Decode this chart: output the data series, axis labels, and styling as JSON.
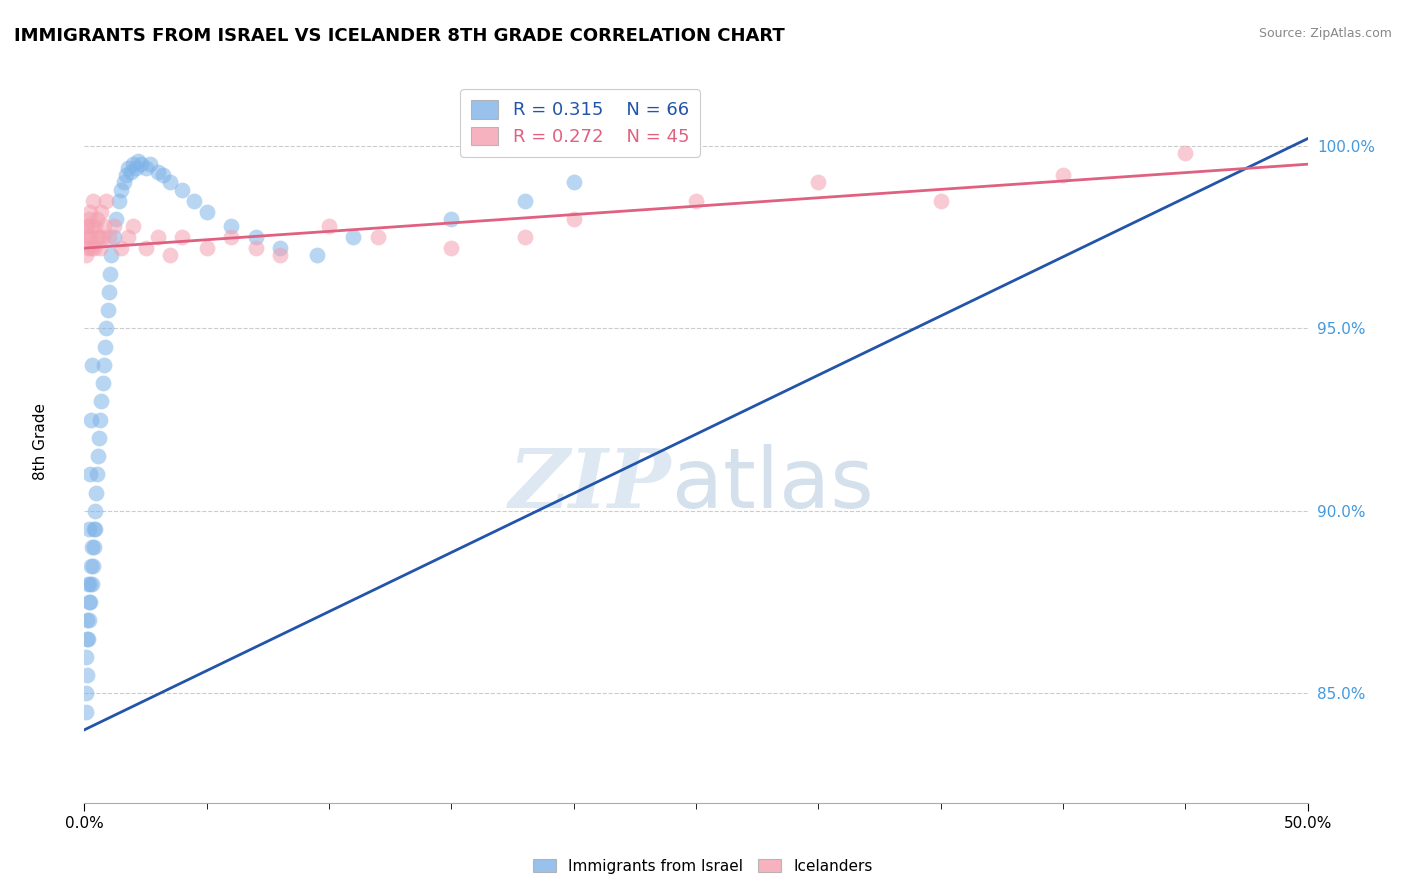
{
  "title": "IMMIGRANTS FROM ISRAEL VS ICELANDER 8TH GRADE CORRELATION CHART",
  "source": "Source: ZipAtlas.com",
  "ylabel": "8th Grade",
  "xlim": [
    0.0,
    50.0
  ],
  "ylim": [
    82.0,
    101.8
  ],
  "yticks": [
    85.0,
    90.0,
    95.0,
    100.0
  ],
  "ytick_labels": [
    "85.0%",
    "90.0%",
    "95.0%",
    "100.0%"
  ],
  "blue_R": 0.315,
  "blue_N": 66,
  "pink_R": 0.272,
  "pink_N": 45,
  "blue_color": "#7EB3E8",
  "pink_color": "#F4A0B0",
  "blue_line_color": "#2255AA",
  "pink_line_color": "#E06080",
  "legend1_label": "Immigrants from Israel",
  "legend2_label": "Icelanders",
  "blue_x": [
    0.05,
    0.08,
    0.1,
    0.12,
    0.15,
    0.18,
    0.2,
    0.22,
    0.25,
    0.28,
    0.3,
    0.33,
    0.35,
    0.38,
    0.4,
    0.42,
    0.45,
    0.48,
    0.5,
    0.55,
    0.6,
    0.65,
    0.7,
    0.75,
    0.8,
    0.85,
    0.9,
    0.95,
    1.0,
    1.05,
    1.1,
    1.2,
    1.3,
    1.4,
    1.5,
    1.6,
    1.7,
    1.8,
    1.9,
    2.0,
    2.1,
    2.2,
    2.3,
    2.5,
    2.7,
    3.0,
    3.2,
    3.5,
    4.0,
    4.5,
    5.0,
    6.0,
    7.0,
    8.0,
    9.5,
    11.0,
    15.0,
    18.0,
    20.0,
    0.07,
    0.09,
    0.13,
    0.17,
    0.23,
    0.27,
    0.32
  ],
  "blue_y": [
    84.5,
    86.0,
    85.5,
    87.0,
    86.5,
    87.5,
    87.0,
    88.0,
    87.5,
    88.5,
    88.0,
    89.0,
    88.5,
    89.5,
    89.0,
    90.0,
    89.5,
    90.5,
    91.0,
    91.5,
    92.0,
    92.5,
    93.0,
    93.5,
    94.0,
    94.5,
    95.0,
    95.5,
    96.0,
    96.5,
    97.0,
    97.5,
    98.0,
    98.5,
    98.8,
    99.0,
    99.2,
    99.4,
    99.3,
    99.5,
    99.4,
    99.6,
    99.5,
    99.4,
    99.5,
    99.3,
    99.2,
    99.0,
    98.8,
    98.5,
    98.2,
    97.8,
    97.5,
    97.2,
    97.0,
    97.5,
    98.0,
    98.5,
    99.0,
    85.0,
    86.5,
    88.0,
    89.5,
    91.0,
    92.5,
    94.0
  ],
  "pink_x": [
    0.05,
    0.08,
    0.1,
    0.15,
    0.18,
    0.22,
    0.25,
    0.3,
    0.35,
    0.4,
    0.5,
    0.6,
    0.7,
    0.8,
    0.9,
    1.0,
    1.2,
    1.5,
    1.8,
    2.0,
    2.5,
    3.0,
    3.5,
    4.0,
    5.0,
    6.0,
    7.0,
    8.0,
    10.0,
    12.0,
    15.0,
    18.0,
    20.0,
    25.0,
    30.0,
    35.0,
    40.0,
    45.0,
    0.12,
    0.2,
    0.28,
    0.45,
    0.55,
    0.65,
    0.75
  ],
  "pink_y": [
    97.5,
    97.0,
    97.8,
    97.2,
    98.0,
    97.5,
    98.2,
    97.8,
    98.5,
    97.2,
    98.0,
    97.5,
    98.2,
    97.8,
    98.5,
    97.5,
    97.8,
    97.2,
    97.5,
    97.8,
    97.2,
    97.5,
    97.0,
    97.5,
    97.2,
    97.5,
    97.2,
    97.0,
    97.8,
    97.5,
    97.2,
    97.5,
    98.0,
    98.5,
    99.0,
    98.5,
    99.2,
    99.8,
    97.8,
    97.5,
    97.2,
    97.8,
    97.5,
    97.2,
    97.5
  ],
  "blue_line_x0": 0.0,
  "blue_line_x1": 50.0,
  "blue_line_y0": 84.0,
  "blue_line_y1": 100.2,
  "pink_line_x0": 0.0,
  "pink_line_x1": 50.0,
  "pink_line_y0": 97.2,
  "pink_line_y1": 99.5
}
